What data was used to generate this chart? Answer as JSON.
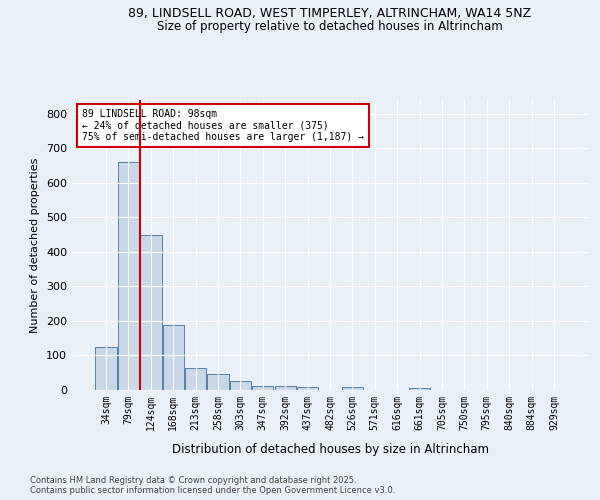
{
  "title1": "89, LINDSELL ROAD, WEST TIMPERLEY, ALTRINCHAM, WA14 5NZ",
  "title2": "Size of property relative to detached houses in Altrincham",
  "xlabel": "Distribution of detached houses by size in Altrincham",
  "ylabel": "Number of detached properties",
  "categories": [
    "34sqm",
    "79sqm",
    "124sqm",
    "168sqm",
    "213sqm",
    "258sqm",
    "303sqm",
    "347sqm",
    "392sqm",
    "437sqm",
    "482sqm",
    "526sqm",
    "571sqm",
    "616sqm",
    "661sqm",
    "705sqm",
    "750sqm",
    "795sqm",
    "840sqm",
    "884sqm",
    "929sqm"
  ],
  "values": [
    125,
    660,
    450,
    187,
    63,
    46,
    27,
    11,
    12,
    9,
    0,
    8,
    0,
    0,
    6,
    0,
    0,
    0,
    0,
    0,
    0
  ],
  "bar_color": "#c8d8e8",
  "bar_edge_color": "#5580a0",
  "red_line_x": 1.5,
  "annotation_text": "89 LINDSELL ROAD: 98sqm\n← 24% of detached houses are smaller (375)\n75% of semi-detached houses are larger (1,187) →",
  "annotation_box_color": "white",
  "annotation_box_edge_color": "#cc0000",
  "red_line_color": "#cc0000",
  "footer1": "Contains HM Land Registry data © Crown copyright and database right 2025.",
  "footer2": "Contains public sector information licensed under the Open Government Licence v3.0.",
  "background_color": "#eaf0f8",
  "plot_bg_color": "#eaf0f8",
  "ylim": [
    0,
    840
  ],
  "yticks": [
    0,
    100,
    200,
    300,
    400,
    500,
    600,
    700,
    800
  ]
}
